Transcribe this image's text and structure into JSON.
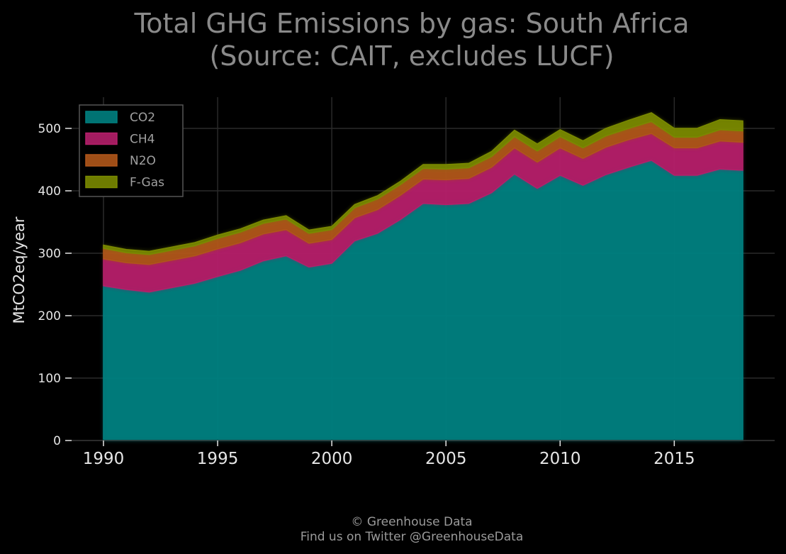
{
  "chart_data": {
    "type": "area",
    "stacked": true,
    "title": "Total GHG Emissions by gas: South Africa",
    "subtitle": "(Source: CAIT, excludes LUCF)",
    "xlabel": "",
    "ylabel": "MtCO2eq/year",
    "xlim": [
      1990,
      2018
    ],
    "ylim": [
      0,
      550
    ],
    "x_ticks": [
      1990,
      1995,
      2000,
      2005,
      2010,
      2015
    ],
    "y_ticks": [
      0,
      100,
      200,
      300,
      400,
      500
    ],
    "grid": true,
    "legend_position": "top-left",
    "x": [
      1990,
      1991,
      1992,
      1993,
      1994,
      1995,
      1996,
      1997,
      1998,
      1999,
      2000,
      2001,
      2002,
      2003,
      2004,
      2005,
      2006,
      2007,
      2008,
      2009,
      2010,
      2011,
      2012,
      2013,
      2014,
      2015,
      2016,
      2017,
      2018
    ],
    "series": [
      {
        "name": "CO2",
        "color": "#008080",
        "values": [
          248,
          242,
          238,
          245,
          252,
          263,
          273,
          288,
          296,
          278,
          284,
          320,
          332,
          354,
          380,
          378,
          380,
          397,
          427,
          404,
          425,
          409,
          426,
          438,
          449,
          425,
          425,
          435,
          433
        ]
      },
      {
        "name": "CH4",
        "color": "#b51f6a",
        "values": [
          43,
          43,
          44,
          44,
          44,
          44,
          44,
          43,
          42,
          38,
          38,
          37,
          38,
          39,
          39,
          40,
          40,
          41,
          42,
          42,
          44,
          43,
          44,
          44,
          43,
          44,
          44,
          45,
          45
        ]
      },
      {
        "name": "N2O",
        "color": "#b0561a",
        "values": [
          17,
          16,
          16,
          16,
          16,
          17,
          17,
          17,
          17,
          16,
          16,
          16,
          17,
          17,
          17,
          17,
          17,
          17,
          18,
          18,
          18,
          17,
          18,
          18,
          19,
          17,
          17,
          18,
          18
        ]
      },
      {
        "name": "F-Gas",
        "color": "#7a8a00",
        "values": [
          5,
          5,
          5,
          5,
          5,
          5,
          5,
          5,
          5,
          5,
          5,
          5,
          5,
          5,
          6,
          7,
          7,
          8,
          10,
          11,
          11,
          11,
          12,
          13,
          14,
          14,
          14,
          16,
          16
        ]
      }
    ]
  },
  "footer": {
    "copyright": "© Greenhouse Data",
    "twitter": "Find us on Twitter @GreenhouseData"
  }
}
